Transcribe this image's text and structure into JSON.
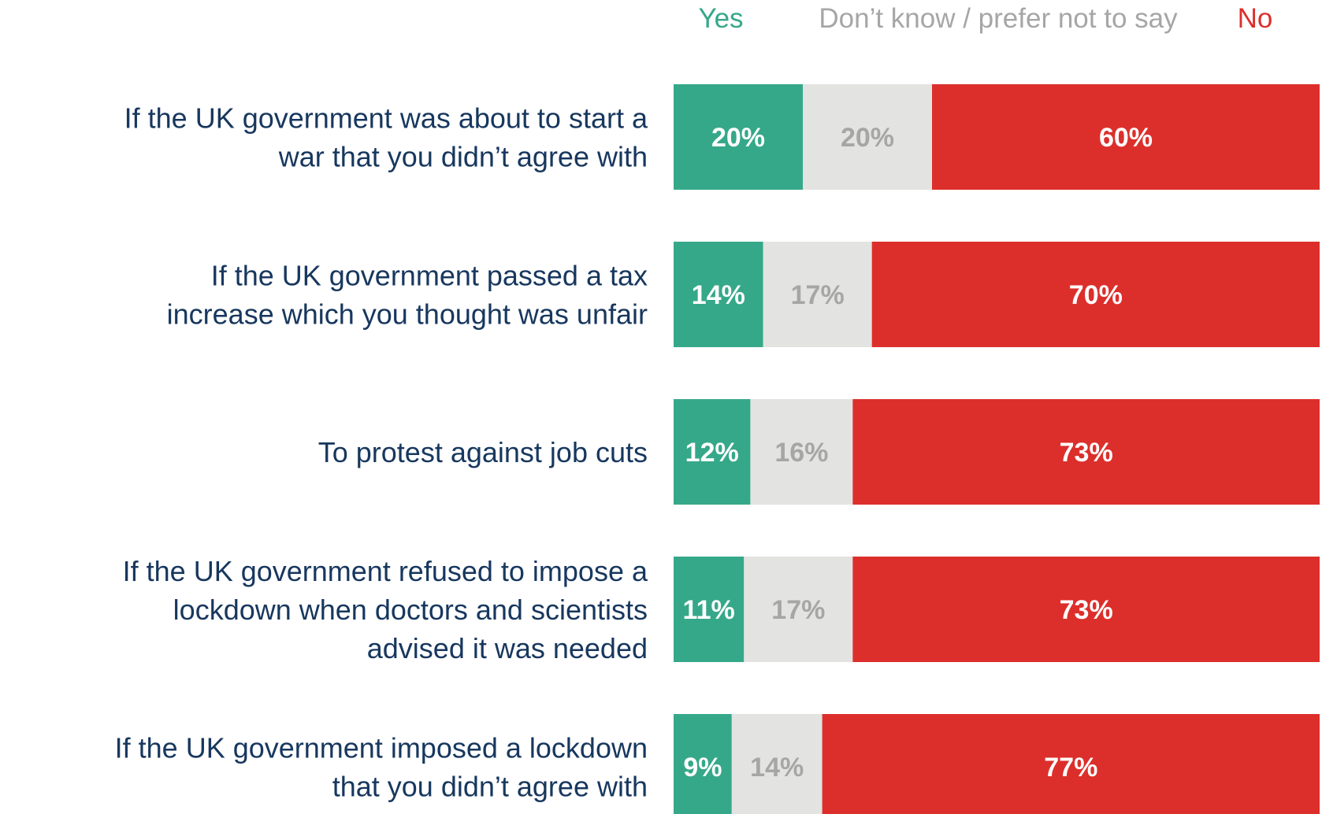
{
  "chart_data": {
    "type": "bar",
    "orientation": "horizontal",
    "stacked": true,
    "normalized_percent": true,
    "legend": {
      "placement": "top",
      "items": [
        "Yes",
        "Don’t know / prefer not to say",
        "No"
      ]
    },
    "categories": [
      [
        "If the UK government was about to start a",
        "war that you didn’t agree with"
      ],
      [
        "If the UK government passed a tax",
        "increase which you thought was unfair"
      ],
      [
        "To protest against job cuts"
      ],
      [
        "If the UK government refused to impose a",
        "lockdown when doctors and scientists",
        "advised it was needed"
      ],
      [
        "If the UK government imposed a lockdown",
        "that you didn’t agree with"
      ]
    ],
    "series": [
      {
        "name": "Yes",
        "color": "#36a88a",
        "label_color": "#ffffff",
        "values": [
          20,
          14,
          12,
          11,
          9
        ]
      },
      {
        "name": "Don’t know / prefer not to say",
        "color": "#e3e3e1",
        "label_color": "#a6a6a6",
        "values": [
          20,
          17,
          16,
          17,
          14
        ]
      },
      {
        "name": "No",
        "color": "#dc2f2b",
        "label_color": "#ffffff",
        "values": [
          60,
          70,
          73,
          73,
          77
        ]
      }
    ],
    "value_suffix": "%",
    "grid": false,
    "xlabel": "",
    "ylabel": ""
  },
  "colors": {
    "label_text": "#17375e",
    "legend_yes": "#36a88a",
    "legend_dk": "#a6a6a6",
    "legend_no": "#dc2f2b"
  }
}
